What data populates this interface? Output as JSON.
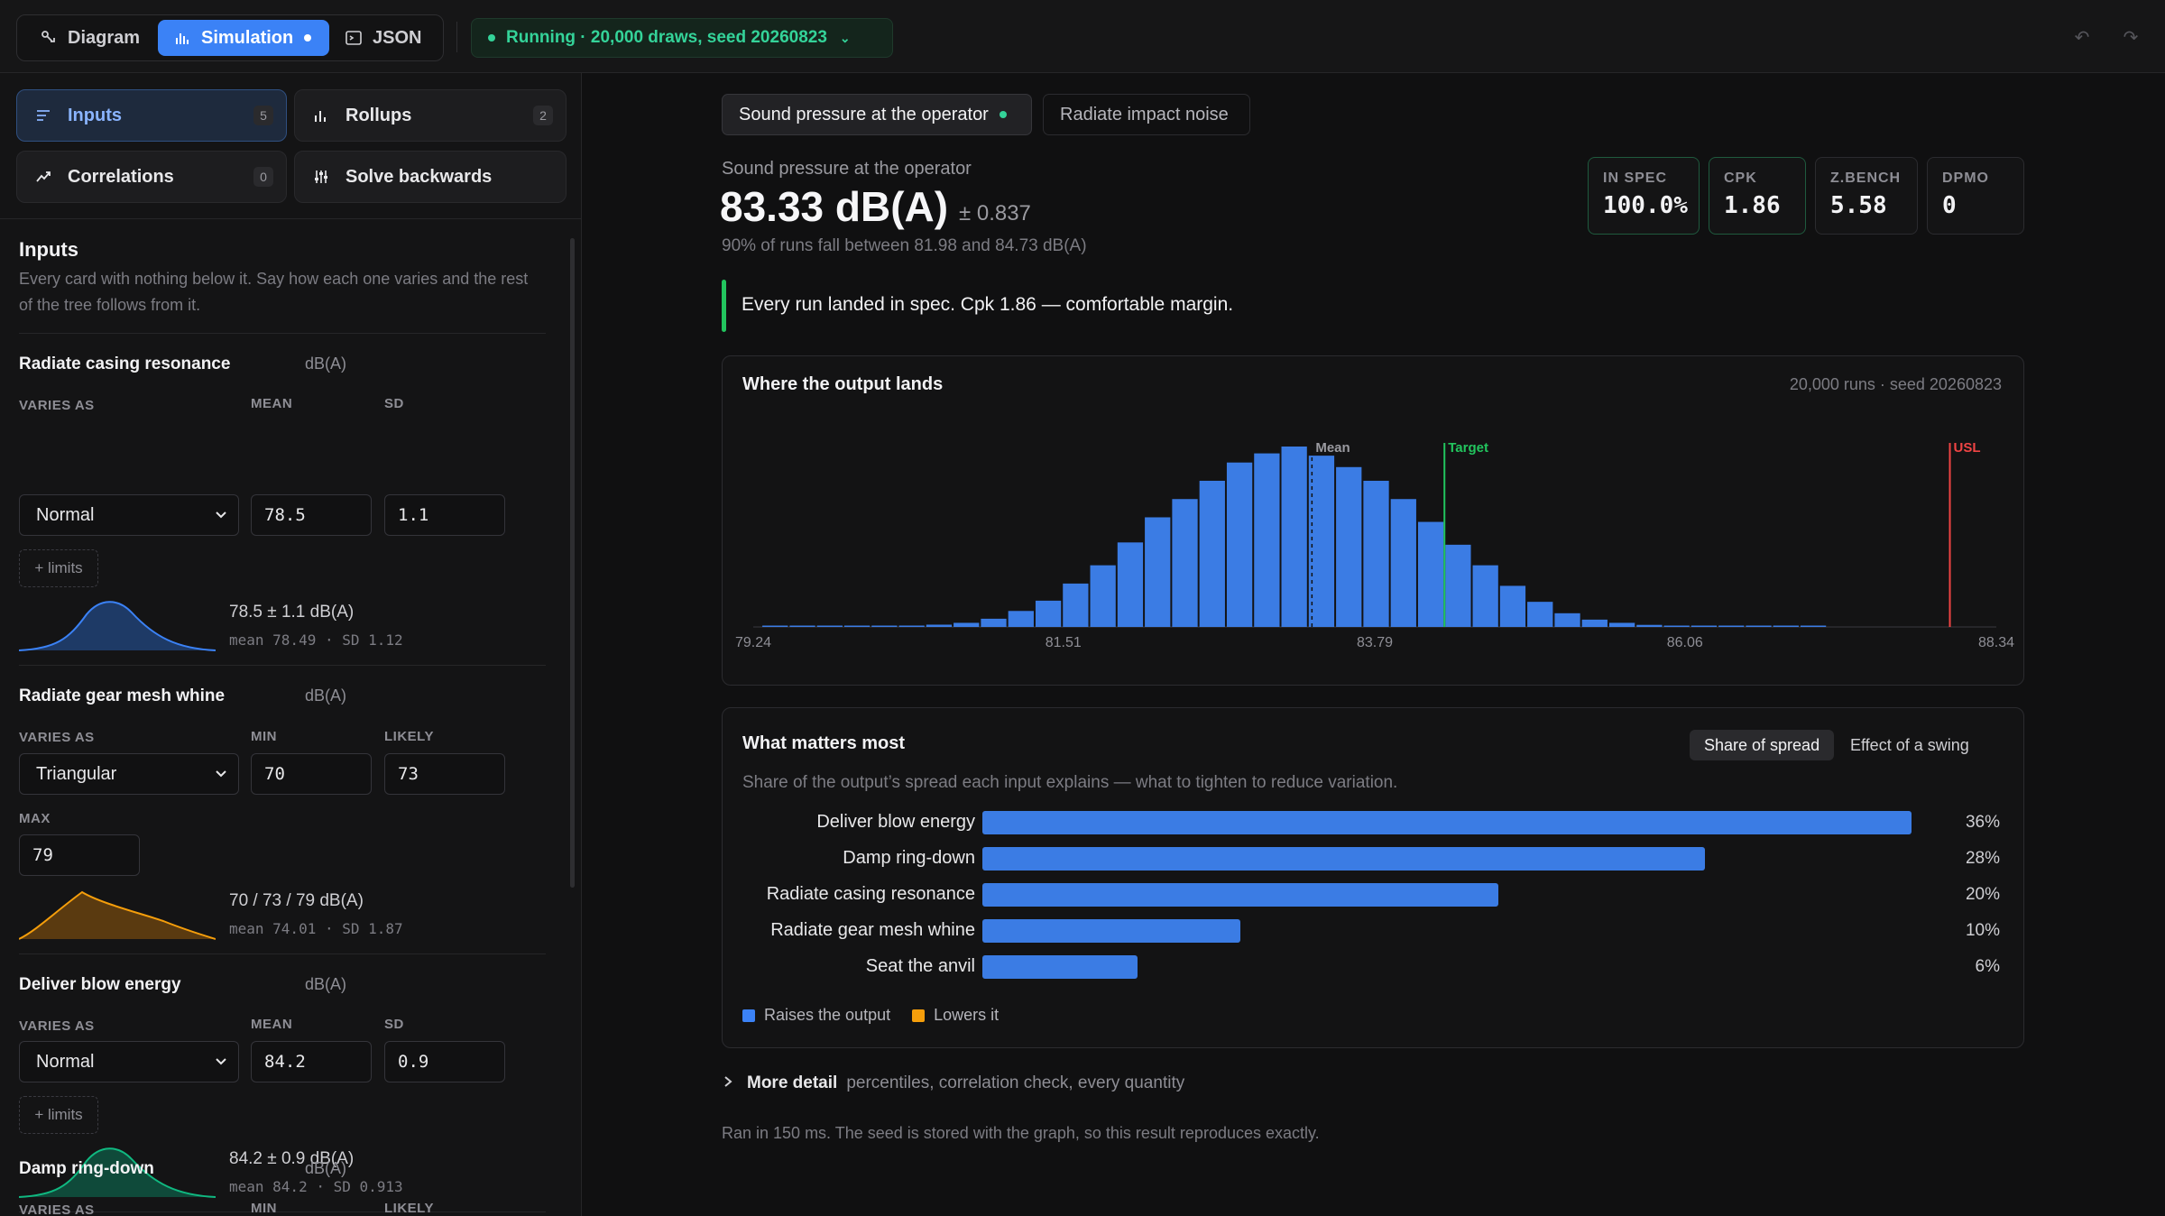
{
  "tabs": [
    {
      "label": "Diagram",
      "icon": "diagram-icon"
    },
    {
      "label": "Simulation",
      "icon": "bar-chart-icon"
    },
    {
      "label": "JSON",
      "icon": "code-icon"
    }
  ],
  "status": "Running · 20,000 draws, seed 20260823",
  "sidebar": {
    "nav": [
      {
        "label": "Inputs",
        "badge": "5"
      },
      {
        "label": "Rollups",
        "badge": "2"
      },
      {
        "label": "Correlations",
        "badge": "0"
      },
      {
        "label": "Solve backwards",
        "badge": ""
      }
    ],
    "section_title": "Inputs",
    "section_desc": "Every card with nothing below it. Say how each one varies and the rest of the tree follows from it.",
    "cards": [
      {
        "title": "Radiate casing resonance",
        "unit": "dB(A)",
        "varies_label": "VARIES AS",
        "dist": "Normal",
        "p1_label": "MEAN",
        "p1": "78.5",
        "p2_label": "SD",
        "p2": "1.1",
        "limits": "+ limits",
        "summary": "78.5 ± 1.1 dB(A)",
        "stats": "mean 78.49 · SD 1.12",
        "color": "#3b82f6"
      },
      {
        "title": "Radiate gear mesh whine",
        "unit": "dB(A)",
        "varies_label": "VARIES AS",
        "dist": "Triangular",
        "p1_label": "MIN",
        "p1": "70",
        "p2_label": "LIKELY",
        "p2": "73",
        "p3_label": "MAX",
        "p3": "79",
        "summary": "70 / 73 / 79 dB(A)",
        "stats": "mean 74.01 · SD 1.87",
        "color": "#f59e0b"
      },
      {
        "title": "Deliver blow energy",
        "unit": "dB(A)",
        "varies_label": "VARIES AS",
        "dist": "Normal",
        "p1_label": "MEAN",
        "p1": "84.2",
        "p2_label": "SD",
        "p2": "0.9",
        "limits": "+ limits",
        "summary": "84.2 ± 0.9 dB(A)",
        "stats": "mean 84.2 · SD 0.913",
        "color": "#10b981"
      },
      {
        "title": "Damp ring-down",
        "unit": "dB(A)",
        "varies_label": "VARIES AS",
        "p1_label": "MIN",
        "p2_label": "LIKELY"
      }
    ]
  },
  "main": {
    "ptabs": [
      "Sound pressure at the operator",
      "Radiate impact noise"
    ],
    "output_name": "Sound pressure at the operator",
    "output_value": "83.33 dB(A)",
    "output_pm": "± 0.837",
    "output_range": "90% of runs fall between 81.98 and 84.73 dB(A)",
    "kpis": [
      {
        "label": "IN SPEC",
        "value": "100.0%"
      },
      {
        "label": "CPK",
        "value": "1.86"
      },
      {
        "label": "Z.BENCH",
        "value": "5.58"
      },
      {
        "label": "DPMO",
        "value": "0"
      }
    ],
    "callout": "Every run landed in spec. Cpk 1.86 — comfortable margin.",
    "hist_title": "Where the output lands",
    "hist_meta": "20,000 runs · seed 20260823",
    "importance_title": "What matters most",
    "importance_toggle": [
      "Share of spread",
      "Effect of a swing"
    ],
    "importance_desc": "Share of the output’s spread each input explains — what to tighten to reduce variation.",
    "legend": [
      "Raises the output",
      "Lowers it"
    ],
    "more_detail": "More detail",
    "more_detail_hint": "percentiles, correlation check, every quantity",
    "footer": "Ran in 150 ms. The seed is stored with the graph, so this result reproduces exactly."
  },
  "colors": {
    "accent": "#3b82f6",
    "success": "#34d399",
    "target": "#22c55e",
    "usl": "#ef4444",
    "bar": "#3b7ce4"
  },
  "chart_data": [
    {
      "type": "bar",
      "title": "Where the output lands",
      "xlim": [
        79.24,
        88.34
      ],
      "x_ticks": [
        "79.24",
        "81.51",
        "83.79",
        "86.06",
        "88.34"
      ],
      "markers": [
        {
          "label": "Mean",
          "x": 83.33
        },
        {
          "label": "Target",
          "x": 84.3
        },
        {
          "label": "USL",
          "x": 88.0
        }
      ],
      "bins_x": [
        79.4,
        79.6,
        79.8,
        80.0,
        80.2,
        80.4,
        80.6,
        80.8,
        81.0,
        81.2,
        81.4,
        81.6,
        81.8,
        82.0,
        82.2,
        82.4,
        82.6,
        82.8,
        83.0,
        83.2,
        83.4,
        83.6,
        83.8,
        84.0,
        84.2,
        84.4,
        84.6,
        84.8,
        85.0,
        85.2,
        85.4,
        85.6,
        85.8,
        86.0,
        86.2,
        86.4,
        86.6,
        86.8,
        87.0
      ],
      "counts": [
        2,
        1,
        1,
        2,
        4,
        6,
        10,
        18,
        36,
        70,
        115,
        190,
        270,
        370,
        480,
        560,
        640,
        720,
        760,
        790,
        750,
        700,
        640,
        560,
        460,
        360,
        270,
        180,
        110,
        60,
        32,
        18,
        9,
        5,
        3,
        2,
        1,
        1,
        1
      ]
    },
    {
      "type": "bar",
      "title": "What matters most",
      "categories": [
        "Deliver blow energy",
        "Damp ring-down",
        "Radiate casing resonance",
        "Radiate gear mesh whine",
        "Seat the anvil"
      ],
      "values": [
        36,
        28,
        20,
        10,
        6
      ],
      "labels": [
        "36%",
        "28%",
        "20%",
        "10%",
        "6%"
      ],
      "unit": "%"
    }
  ]
}
